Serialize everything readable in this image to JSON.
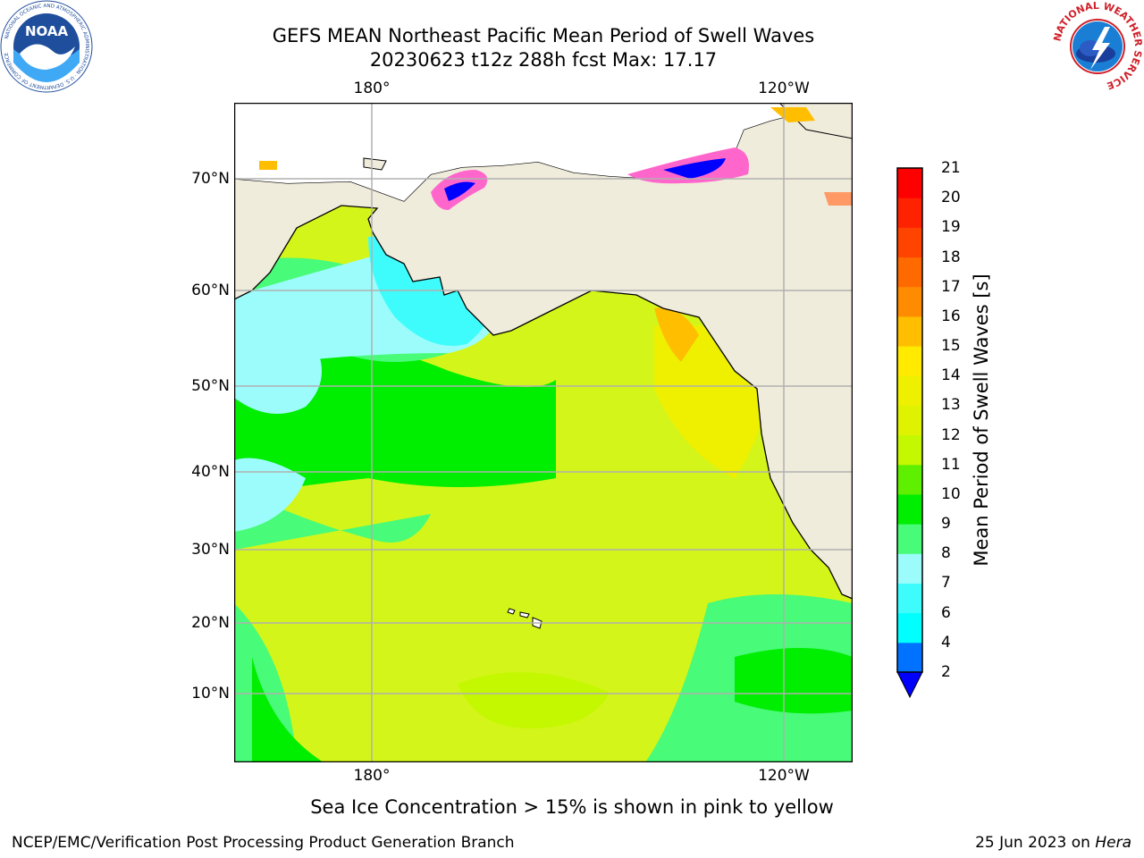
{
  "title_line1": "GEFS MEAN Northeast Pacific Mean Period of Swell Waves",
  "title_line2": "20230623 t12z 288h fcst   Max: 17.17",
  "logos": {
    "noaa_text": "NOAA",
    "noaa_ring": "NATIONAL OCEANIC AND ATMOSPHERIC ADMINISTRATION · U.S. DEPARTMENT OF COMMERCE",
    "nws_ring": "NATIONAL WEATHER SERVICE"
  },
  "map": {
    "lat_labels": [
      "70°N",
      "60°N",
      "50°N",
      "40°N",
      "30°N",
      "20°N",
      "10°N"
    ],
    "lon_labels_top": [
      "180°",
      "120°W"
    ],
    "lon_labels_bottom": [
      "180°",
      "120°W"
    ],
    "colors": {
      "land": "#efecdc",
      "grid": "#b0b0b0",
      "ocean_main": "#d4f51a",
      "sea_ice": "#ff66cc"
    }
  },
  "colorbar": {
    "label": "Mean Period of Swell Waves [s]",
    "ticks": [
      "21",
      "20",
      "19",
      "18",
      "17",
      "16",
      "15",
      "14",
      "13",
      "12",
      "11",
      "10",
      "9",
      "8",
      "7",
      "6",
      "4",
      "2"
    ],
    "colors_bottom_to_top": [
      "#0072ff",
      "#00ffff",
      "#3ffcfc",
      "#9cfcfc",
      "#48fb78",
      "#00ee00",
      "#5ef000",
      "#c4f800",
      "#dff200",
      "#eef000",
      "#ffea00",
      "#ffbe00",
      "#ff8c00",
      "#ff6a00",
      "#ff4400",
      "#ff2200",
      "#ff0000"
    ],
    "extend_color": "#0000ff"
  },
  "note": "Sea Ice Concentration > 15% is shown in pink to yellow",
  "footer_left": "NCEP/EMC/Verification Post Processing Product Generation Branch",
  "footer_right_date": "25 Jun 2023 on ",
  "footer_right_machine": "Hera"
}
